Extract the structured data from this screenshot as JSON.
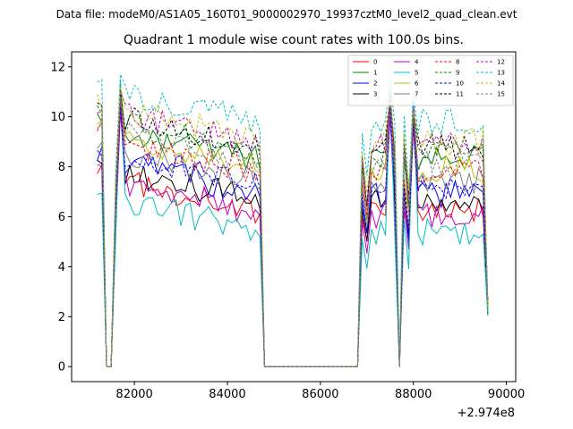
{
  "chart_data": {
    "type": "line",
    "suptitle": "Data file: modeM0/AS1A05_160T01_9000002970_19937cztM0_level2_quad_clean.evt",
    "title": "Quadrant 1 module wise count rates with 100.0s bins.",
    "xlabel": "",
    "ylabel": "",
    "x_offset_label": "+2.974e8",
    "xlim": [
      80650,
      90200
    ],
    "ylim": [
      -0.6,
      12.6
    ],
    "x_ticks": [
      82000,
      84000,
      86000,
      88000,
      90000
    ],
    "x_tick_labels": [
      "82000",
      "84000",
      "86000",
      "88000",
      "90000"
    ],
    "y_ticks": [
      0,
      2,
      4,
      6,
      8,
      10,
      12
    ],
    "y_tick_labels": [
      "0",
      "2",
      "4",
      "6",
      "8",
      "10",
      "12"
    ],
    "grid": false,
    "legend_position": "top-right",
    "segments": [
      {
        "x_start": 81200,
        "x_end": 84700
      },
      {
        "x_start": 86900,
        "x_end": 87600
      },
      {
        "x_start": 87800,
        "x_end": 89600
      }
    ],
    "series": [
      {
        "name": "0",
        "color": "#ff0000",
        "style": "solid",
        "base_level": 6.2,
        "peak": 10.8
      },
      {
        "name": "1",
        "color": "#008000",
        "style": "solid",
        "base_level": 8.3,
        "peak": 11.2
      },
      {
        "name": "2",
        "color": "#0000ff",
        "style": "solid",
        "base_level": 6.9,
        "peak": 10.6
      },
      {
        "name": "3",
        "color": "#000000",
        "style": "solid",
        "base_level": 6.6,
        "peak": 10.5
      },
      {
        "name": "4",
        "color": "#bf00bf",
        "style": "solid",
        "base_level": 6.1,
        "peak": 10.2
      },
      {
        "name": "5",
        "color": "#00bfbf",
        "style": "solid",
        "base_level": 5.4,
        "peak": 11.5
      },
      {
        "name": "6",
        "color": "#bfbf00",
        "style": "solid",
        "base_level": 7.9,
        "peak": 10.9
      },
      {
        "name": "7",
        "color": "#808080",
        "style": "solid",
        "base_level": 7.4,
        "peak": 10.7
      },
      {
        "name": "8",
        "color": "#ff0000",
        "style": "dashed",
        "base_level": 7.8,
        "peak": 10.7
      },
      {
        "name": "9",
        "color": "#008000",
        "style": "dashed",
        "base_level": 8.5,
        "peak": 11.1
      },
      {
        "name": "10",
        "color": "#0000ff",
        "style": "dashed",
        "base_level": 7.2,
        "peak": 10.4
      },
      {
        "name": "11",
        "color": "#000000",
        "style": "dashed",
        "base_level": 8.8,
        "peak": 10.9
      },
      {
        "name": "12",
        "color": "#bf00bf",
        "style": "dashed",
        "base_level": 8.9,
        "peak": 11.0
      },
      {
        "name": "13",
        "color": "#00bfbf",
        "style": "dashed",
        "base_level": 9.8,
        "peak": 11.7
      },
      {
        "name": "14",
        "color": "#bfbf00",
        "style": "dashed",
        "base_level": 9.0,
        "peak": 11.2
      },
      {
        "name": "15",
        "color": "#808080",
        "style": "dashed",
        "base_level": 8.1,
        "peak": 10.8
      }
    ]
  }
}
